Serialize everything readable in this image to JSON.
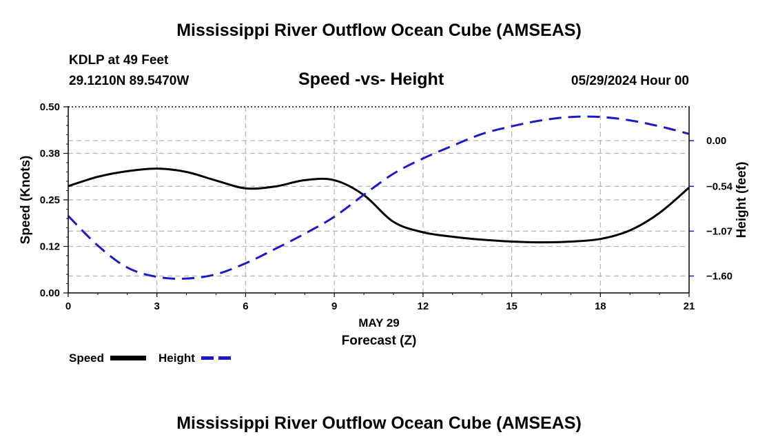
{
  "header": {
    "title": "Mississippi River Outflow Ocean Cube (AMSEAS)",
    "station": "KDLP at 49 Feet",
    "coords": "29.1210N  89.5470W",
    "subtitle": "Speed -vs- Height",
    "datetime": "05/29/2024 Hour 00"
  },
  "footer": {
    "title": "Mississippi River Outflow Ocean Cube (AMSEAS)"
  },
  "legend": {
    "items": [
      {
        "label": "Speed",
        "color": "#000000",
        "style": "solid"
      },
      {
        "label": "Height",
        "color": "#1a1acc",
        "style": "dashed"
      }
    ]
  },
  "chart_data": {
    "type": "line",
    "title": "Speed -vs- Height",
    "xlabel": "Forecast (Z)",
    "xlabel_date": "MAY 29",
    "ylabel_left": "Speed (Knots)",
    "ylabel_right": "Height (feet)",
    "xlim": [
      0,
      21
    ],
    "x_ticks": [
      0,
      3,
      6,
      9,
      12,
      15,
      18,
      21
    ],
    "y_left_lim": [
      0,
      0.5
    ],
    "y_left_ticks": [
      0.0,
      0.125,
      0.25,
      0.375,
      0.5
    ],
    "y_left_tick_labels": [
      "0.00",
      "0.12",
      "0.25",
      "0.38",
      "0.50"
    ],
    "y_right_lim": [
      -1.8,
      0.4
    ],
    "y_right_ticks": [
      -1.6,
      -1.07,
      -0.54,
      0.0
    ],
    "y_right_tick_labels": [
      "−1.60",
      "−1.07",
      "−0.54",
      "0.00"
    ],
    "grid": true,
    "series": [
      {
        "name": "Speed",
        "axis": "left",
        "color": "#000000",
        "dash": "none",
        "x": [
          0,
          1,
          2,
          3,
          4,
          5,
          6,
          7,
          8,
          9,
          10,
          11,
          12,
          13,
          14,
          15,
          16,
          17,
          18,
          19,
          20,
          21
        ],
        "values": [
          0.287,
          0.312,
          0.327,
          0.334,
          0.325,
          0.302,
          0.281,
          0.286,
          0.303,
          0.303,
          0.263,
          0.191,
          0.163,
          0.151,
          0.143,
          0.138,
          0.136,
          0.138,
          0.145,
          0.168,
          0.215,
          0.283
        ]
      },
      {
        "name": "Height",
        "axis": "right",
        "color": "#1a1acc",
        "dash": "18,10",
        "x": [
          0,
          1,
          2,
          3,
          4,
          5,
          6,
          7,
          8,
          9,
          10,
          11,
          12,
          13,
          14,
          15,
          16,
          17,
          18,
          19,
          20,
          21
        ],
        "values": [
          -0.89,
          -1.24,
          -1.5,
          -1.61,
          -1.63,
          -1.58,
          -1.45,
          -1.28,
          -1.1,
          -0.9,
          -0.64,
          -0.39,
          -0.21,
          -0.06,
          0.08,
          0.17,
          0.24,
          0.28,
          0.28,
          0.24,
          0.17,
          0.08
        ]
      }
    ]
  }
}
